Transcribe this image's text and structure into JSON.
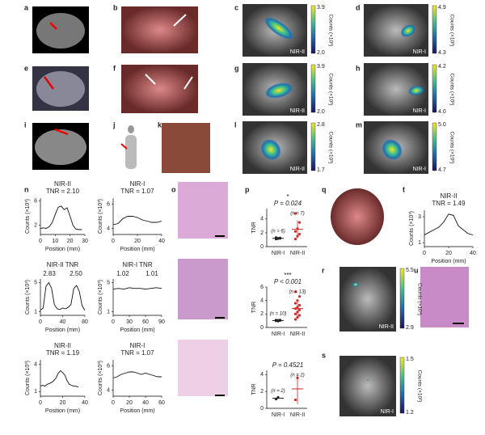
{
  "panel_labels": [
    "a",
    "b",
    "c",
    "d",
    "e",
    "f",
    "g",
    "h",
    "i",
    "j",
    "k",
    "l",
    "m",
    "n",
    "o",
    "p",
    "q",
    "r",
    "s",
    "t",
    "u"
  ],
  "nir_images": [
    {
      "modality": "NIR-II",
      "colorbar_max": "3.9",
      "colorbar_min": "2.0",
      "colorbar_title": "Counts (×10³)"
    },
    {
      "modality": "NIR-I",
      "colorbar_max": "4.9",
      "colorbar_min": "4.3",
      "colorbar_title": "Counts (×10³)"
    },
    {
      "modality": "NIR-II",
      "colorbar_max": "3.9",
      "colorbar_min": "2.0",
      "colorbar_title": "Counts (×10³)"
    },
    {
      "modality": "NIR-I",
      "colorbar_max": "4.2",
      "colorbar_min": "4.0",
      "colorbar_title": "Counts (×10³)"
    },
    {
      "modality": "NIR-II",
      "colorbar_max": "2.8",
      "colorbar_min": "1.7",
      "colorbar_title": "Counts (×10³)"
    },
    {
      "modality": "NIR-I",
      "colorbar_max": "5.0",
      "colorbar_min": "4.7",
      "colorbar_title": "Counts (×10³)"
    },
    {
      "modality": "NIR-II",
      "colorbar_max": "5.5",
      "colorbar_min": "2.9",
      "colorbar_title": "Counts (×10³)"
    },
    {
      "modality": "NIR-I",
      "colorbar_max": "1.5",
      "colorbar_min": "1.2",
      "colorbar_title": "Counts (×10³)"
    }
  ],
  "chart_data": [
    {
      "type": "line",
      "title": "NIR-II",
      "subtitle": "TNR = 2.10",
      "x_label": "Position (mm)",
      "y_label": "Counts (×10³)",
      "color": "#111",
      "x": [
        0,
        2,
        4,
        6,
        8,
        10,
        12,
        14,
        16,
        18,
        20,
        22,
        24,
        26,
        28
      ],
      "values": [
        1.5,
        1.6,
        1.5,
        1.8,
        2.5,
        3.8,
        5.0,
        5.2,
        4.6,
        4.9,
        3.5,
        2.0,
        1.4,
        1.3,
        1.3
      ],
      "xlim": [
        0,
        30
      ],
      "xticks": [
        0,
        10,
        20,
        30
      ],
      "ylim": [
        0.5,
        6.5
      ],
      "yticks": [
        2,
        6
      ]
    },
    {
      "type": "line",
      "title": "NIR-I",
      "subtitle": "TNR = 1.07",
      "x_label": "Position (mm)",
      "y_label": "Counts (×10³)",
      "color": "#111",
      "x": [
        0,
        4,
        8,
        12,
        16,
        20,
        24,
        28,
        32,
        36,
        40
      ],
      "values": [
        4.3,
        4.4,
        4.8,
        5.0,
        5.0,
        4.9,
        4.7,
        4.6,
        4.5,
        4.5,
        4.6
      ],
      "xlim": [
        0,
        40
      ],
      "xticks": [
        0,
        20,
        40
      ],
      "ylim": [
        3.5,
        6.5
      ],
      "yticks": [
        4,
        6
      ]
    },
    {
      "type": "line",
      "title": "NIR-II TNR",
      "annotations": [
        "2.83",
        "2.50"
      ],
      "x_label": "Position (mm)",
      "y_label": "Counts (×10³)",
      "color": "#111",
      "x": [
        0,
        5,
        10,
        15,
        20,
        25,
        30,
        35,
        40,
        45,
        50,
        55,
        60,
        65,
        70,
        75,
        80
      ],
      "values": [
        1.2,
        1.5,
        4.5,
        5.0,
        4.2,
        2.0,
        1.4,
        1.3,
        1.5,
        1.4,
        1.6,
        2.0,
        4.2,
        4.6,
        3.8,
        1.8,
        1.2
      ],
      "xlim": [
        0,
        80
      ],
      "xticks": [
        0,
        40,
        80
      ],
      "ylim": [
        0.5,
        5.5
      ],
      "yticks": [
        1,
        5
      ]
    },
    {
      "type": "line",
      "title": "NIR-I TNR",
      "annotations": [
        "1.02",
        "1.01"
      ],
      "x_label": "Position (mm)",
      "y_label": "Counts (×10³)",
      "color": "#111",
      "x": [
        0,
        10,
        20,
        30,
        40,
        50,
        60,
        70,
        80,
        90
      ],
      "values": [
        4.1,
        4.2,
        4.1,
        4.3,
        4.2,
        4.2,
        4.1,
        4.2,
        4.3,
        4.2
      ],
      "xlim": [
        0,
        90
      ],
      "xticks": [
        0,
        30,
        60,
        90
      ],
      "ylim": [
        0.5,
        5.5
      ],
      "yticks": [
        1,
        5
      ]
    },
    {
      "type": "line",
      "title": "NIR-II",
      "subtitle": "TNR = 1.19",
      "x_label": "Position (mm)",
      "y_label": "Counts (×10³)",
      "color": "#111",
      "x": [
        0,
        2,
        4,
        6,
        8,
        10,
        12,
        14,
        16,
        18,
        20,
        22,
        24,
        26,
        28,
        30,
        32,
        34
      ],
      "values": [
        1.6,
        1.7,
        1.6,
        1.8,
        1.9,
        2.0,
        2.2,
        2.5,
        3.0,
        3.3,
        3.1,
        2.8,
        2.2,
        1.8,
        1.7,
        1.6,
        1.6,
        1.5
      ],
      "xlim": [
        0,
        40
      ],
      "xticks": [
        0,
        20,
        40
      ],
      "ylim": [
        0.5,
        4.5
      ],
      "yticks": [
        1,
        4
      ]
    },
    {
      "type": "line",
      "title": "NIR-I",
      "subtitle": "TNR = 1.07",
      "x_label": "Position (mm)",
      "y_label": "Counts (×10³)",
      "color": "#111",
      "x": [
        0,
        5,
        10,
        15,
        20,
        25,
        30,
        35,
        40,
        45,
        50,
        55,
        60
      ],
      "values": [
        5.0,
        5.1,
        5.3,
        5.4,
        5.5,
        5.5,
        5.4,
        5.3,
        5.4,
        5.3,
        5.2,
        5.1,
        5.1
      ],
      "xlim": [
        0,
        60
      ],
      "xticks": [
        0,
        20,
        40,
        60
      ],
      "ylim": [
        3.5,
        6.5
      ],
      "yticks": [
        4,
        6
      ]
    },
    {
      "type": "dot",
      "y_label": "TNR",
      "categories": [
        "NIR-I",
        "NIR-II"
      ],
      "colors": [
        "#222",
        "#d62728"
      ],
      "significance": "*",
      "p_label": "P = 0.024",
      "n_labels": [
        "(n = 6)",
        "(n = 7)"
      ],
      "groups": [
        [
          1.1,
          1.2,
          1.25,
          1.3,
          1.15,
          1.2
        ],
        [
          1.1,
          1.5,
          1.8,
          2.2,
          2.6,
          3.5,
          4.8
        ]
      ],
      "means": [
        1.2,
        2.5
      ],
      "sds": [
        0.1,
        1.3
      ],
      "ylim": [
        0,
        5.5
      ],
      "yticks": [
        0,
        2,
        4
      ]
    },
    {
      "type": "dot",
      "y_label": "TNR",
      "categories": [
        "NIR-I",
        "NIR-II"
      ],
      "colors": [
        "#222",
        "#d62728"
      ],
      "significance": "***",
      "p_label": "P < 0.001",
      "n_labels": [
        "(n = 10)",
        "(n = 13)"
      ],
      "groups": [
        [
          1.0,
          1.05,
          1.1,
          1.0,
          0.95,
          1.05,
          1.1,
          1.0,
          1.05,
          1.0
        ],
        [
          1.2,
          1.5,
          1.8,
          2.0,
          2.3,
          2.6,
          2.8,
          3.0,
          3.3,
          3.6,
          4.0,
          4.6,
          5.3
        ]
      ],
      "means": [
        1.03,
        2.8
      ],
      "sds": [
        0.05,
        1.2
      ],
      "ylim": [
        0,
        6
      ],
      "yticks": [
        0,
        2,
        4,
        6
      ]
    },
    {
      "type": "dot",
      "y_label": "TNR",
      "categories": [
        "NIR-I",
        "NIR-II"
      ],
      "colors": [
        "#222",
        "#d62728"
      ],
      "p_label": "P = 0.4521",
      "n_labels": [
        "(n = 2)",
        "(n = 2)"
      ],
      "groups": [
        [
          1.1,
          1.3
        ],
        [
          1.0,
          3.6
        ]
      ],
      "means": [
        1.2,
        2.3
      ],
      "sds": [
        0.14,
        1.8
      ],
      "ylim": [
        0,
        4.5
      ],
      "yticks": [
        0,
        2,
        4
      ]
    },
    {
      "type": "line",
      "title": "NIR-II",
      "subtitle": "TNR = 1.49",
      "x_label": "Position (mm)",
      "y_label": "Counts (×10³)",
      "color": "#111",
      "x": [
        0,
        4,
        8,
        12,
        16,
        20,
        24,
        28,
        32,
        36,
        40
      ],
      "values": [
        1.6,
        1.8,
        2.0,
        2.2,
        2.6,
        3.2,
        3.1,
        2.3,
        2.0,
        1.7,
        1.6
      ],
      "xlim": [
        0,
        40
      ],
      "xticks": [
        0,
        20,
        40
      ],
      "ylim": [
        0.7,
        3.5
      ],
      "yticks": [
        1,
        3
      ]
    }
  ]
}
